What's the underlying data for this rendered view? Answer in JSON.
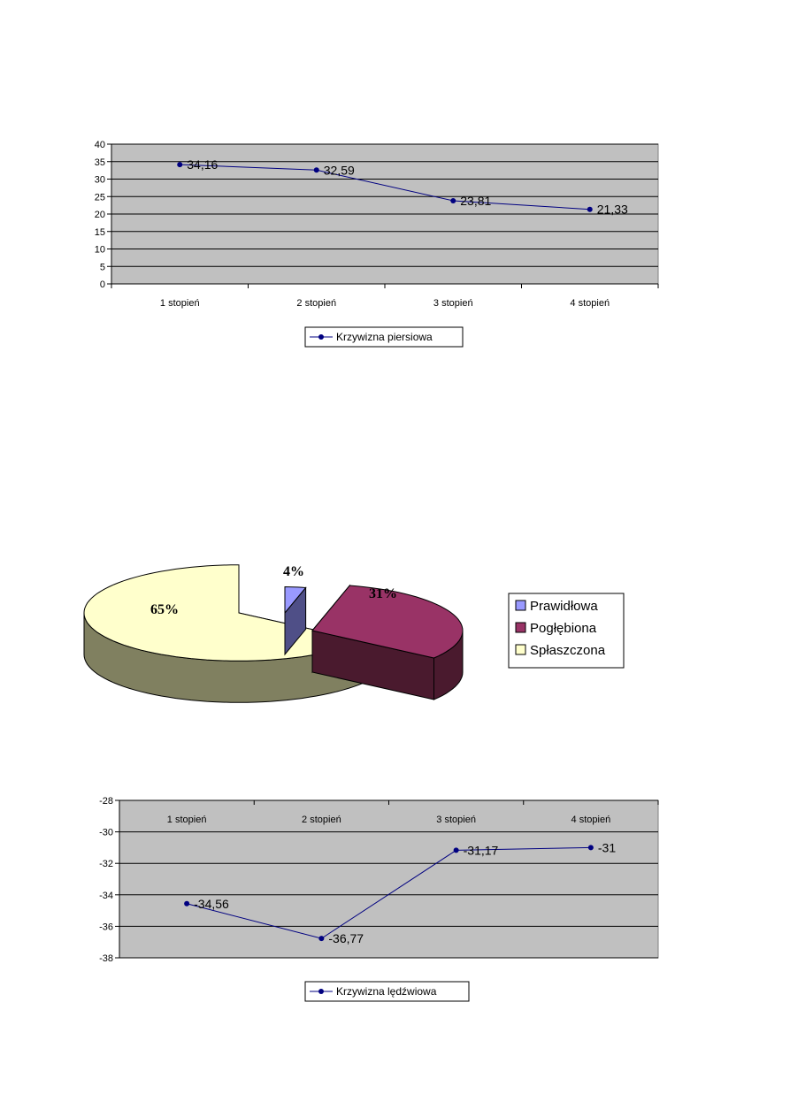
{
  "chart_data": [
    {
      "type": "line",
      "categories": [
        "1 stopień",
        "2 stopień",
        "3 stopień",
        "4 stopień"
      ],
      "series": [
        {
          "name": "Krzywizna piersiowa",
          "values": [
            34.16,
            32.59,
            23.81,
            21.33
          ]
        }
      ],
      "data_labels": [
        "34,16",
        "32,59",
        "23,81",
        "21,33"
      ],
      "yticks": [
        "0",
        "5",
        "10",
        "15",
        "20",
        "25",
        "30",
        "35",
        "40"
      ],
      "ylim": [
        0,
        40
      ],
      "grid": true,
      "legend": "bottom",
      "line_color": "#000080",
      "plot_bg": "#c0c0c0"
    },
    {
      "type": "pie",
      "labels": [
        "Prawidłowa",
        "Pogłębiona",
        "Spłaszczona"
      ],
      "values": [
        4,
        31,
        65
      ],
      "data_labels": [
        "4%",
        "31%",
        "65%"
      ],
      "colors": [
        "#9999ff",
        "#993366",
        "#ffffcc"
      ],
      "legend": "right",
      "style": "3d-exploded"
    },
    {
      "type": "line",
      "categories": [
        "1 stopień",
        "2 stopień",
        "3 stopień",
        "4 stopień"
      ],
      "series": [
        {
          "name": "Krzywizna lędźwiowa",
          "values": [
            -34.56,
            -36.77,
            -31.17,
            -31
          ]
        }
      ],
      "data_labels": [
        "-34,56",
        "-36,77",
        "-31,17",
        "-31"
      ],
      "yticks": [
        "-38",
        "-36",
        "-34",
        "-32",
        "-30",
        "-28"
      ],
      "ylim": [
        -38,
        -28
      ],
      "grid": true,
      "legend": "bottom",
      "line_color": "#000080",
      "plot_bg": "#c0c0c0"
    }
  ]
}
